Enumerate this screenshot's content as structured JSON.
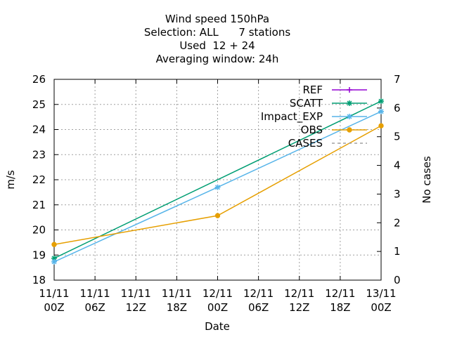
{
  "chart_data": {
    "type": "line",
    "title_lines": [
      "Wind speed 150hPa",
      "Selection: ALL      7 stations",
      "Used  12 + 24",
      "Averaging window: 24h"
    ],
    "xlabel": "Date",
    "ylabel": "m/s",
    "y2label": "No cases",
    "x_tick_labels": [
      [
        "11/11",
        "00Z"
      ],
      [
        "11/11",
        "06Z"
      ],
      [
        "11/11",
        "12Z"
      ],
      [
        "11/11",
        "18Z"
      ],
      [
        "12/11",
        "00Z"
      ],
      [
        "12/11",
        "06Z"
      ],
      [
        "12/11",
        "12Z"
      ],
      [
        "12/11",
        "18Z"
      ],
      [
        "13/11",
        "00Z"
      ]
    ],
    "x_hours": [
      0,
      6,
      12,
      18,
      24,
      30,
      36,
      42,
      48
    ],
    "xlim_hours": [
      0,
      48
    ],
    "ylim": [
      18,
      26
    ],
    "y_ticks": [
      18,
      19,
      20,
      21,
      22,
      23,
      24,
      25,
      26
    ],
    "y2lim": [
      0,
      7
    ],
    "y2_ticks": [
      0,
      1,
      2,
      3,
      4,
      5,
      6,
      7
    ],
    "grid": true,
    "legend_position": "top-right",
    "series": [
      {
        "name": "REF",
        "color": "#9400d3",
        "x_hours": [],
        "values": [],
        "marker": "plus"
      },
      {
        "name": "SCATT",
        "color": "#009e73",
        "x_hours": [
          0,
          48
        ],
        "values": [
          18.87,
          25.13
        ],
        "marker": "star"
      },
      {
        "name": "Impact_EXP",
        "color": "#56b4e9",
        "x_hours": [
          0,
          24,
          48
        ],
        "values": [
          18.73,
          21.7,
          24.72
        ],
        "marker": "star"
      },
      {
        "name": "OBS",
        "color": "#e69f00",
        "x_hours": [
          0,
          24,
          48
        ],
        "values": [
          19.42,
          20.57,
          24.15
        ],
        "marker": "circle"
      },
      {
        "name": "CASES",
        "color": "#a0a0a0",
        "x_hours": [],
        "values": [],
        "marker": "none",
        "dashed": true
      }
    ]
  }
}
